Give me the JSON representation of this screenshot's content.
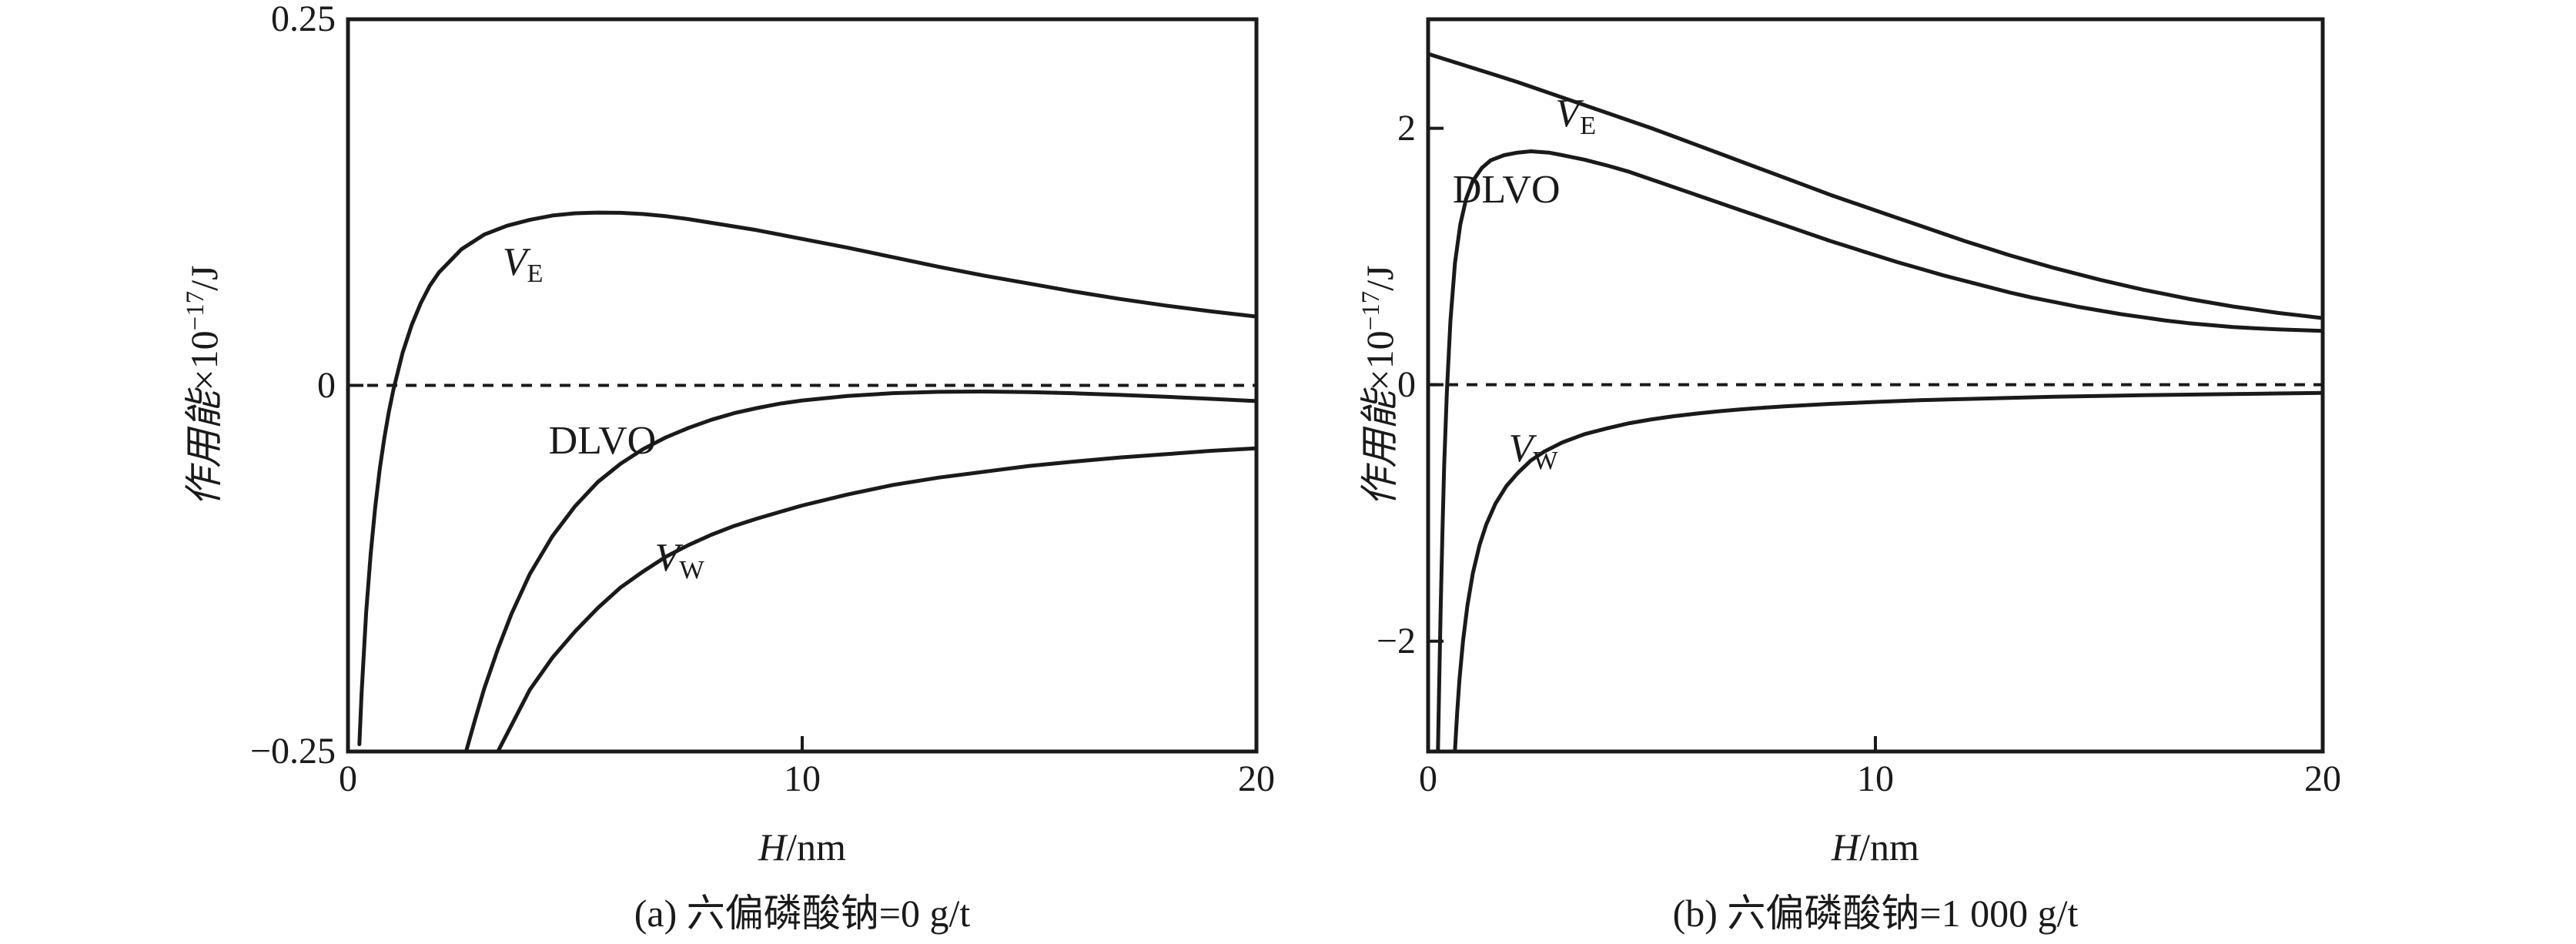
{
  "colors": {
    "ink": "#1a1a1a",
    "background": "#ffffff"
  },
  "chart_data": [
    {
      "type": "line",
      "panel": "a",
      "caption": "(a) 六偏磷酸钠=0 g/t",
      "xlabel_var": "H",
      "xlabel_unit": "/nm",
      "ylabel_cjk": "作用能",
      "ylabel_base": "×10",
      "ylabel_sup": "−17",
      "ylabel_unit": "/J",
      "xlim": [
        0,
        20
      ],
      "ylim": [
        -0.25,
        0.25
      ],
      "grid": false,
      "zero_line_dashed": true,
      "x_ticks": [
        {
          "v": 0,
          "label": "0"
        },
        {
          "v": 10,
          "label": "10"
        },
        {
          "v": 20,
          "label": "20"
        }
      ],
      "y_ticks": [
        {
          "v": 0.25,
          "label": "0.25"
        },
        {
          "v": 0,
          "label": "0"
        },
        {
          "v": -0.25,
          "label": "−0.25"
        }
      ],
      "series": [
        {
          "name": "VE",
          "label": {
            "main": "V",
            "sub": "E",
            "italic": true
          },
          "label_at": [
            3.85,
            0.084
          ],
          "points": [
            [
              0.25,
              -0.245
            ],
            [
              0.3,
              -0.21
            ],
            [
              0.4,
              -0.155
            ],
            [
              0.5,
              -0.115
            ],
            [
              0.6,
              -0.083
            ],
            [
              0.7,
              -0.057
            ],
            [
              0.8,
              -0.036
            ],
            [
              0.9,
              -0.018
            ],
            [
              1.0,
              -0.003
            ],
            [
              1.2,
              0.022
            ],
            [
              1.4,
              0.041
            ],
            [
              1.6,
              0.056
            ],
            [
              1.8,
              0.068
            ],
            [
              2.0,
              0.077
            ],
            [
              2.5,
              0.093
            ],
            [
              3.0,
              0.103
            ],
            [
              3.5,
              0.109
            ],
            [
              4.0,
              0.113
            ],
            [
              4.5,
              0.116
            ],
            [
              5.0,
              0.1175
            ],
            [
              5.5,
              0.118
            ],
            [
              6.0,
              0.1178
            ],
            [
              6.5,
              0.117
            ],
            [
              7.0,
              0.1155
            ],
            [
              7.5,
              0.1135
            ],
            [
              8.0,
              0.111
            ],
            [
              9.0,
              0.106
            ],
            [
              10,
              0.1
            ],
            [
              11,
              0.094
            ],
            [
              12,
              0.0875
            ],
            [
              13,
              0.081
            ],
            [
              14,
              0.075
            ],
            [
              15,
              0.0695
            ],
            [
              16,
              0.064
            ],
            [
              17,
              0.059
            ],
            [
              18,
              0.0545
            ],
            [
              19,
              0.0505
            ],
            [
              20,
              0.047
            ]
          ]
        },
        {
          "name": "DLVO",
          "label": {
            "main": "DLVO",
            "sub": "",
            "italic": false
          },
          "label_at": [
            5.6,
            -0.038
          ],
          "points": [
            [
              2.6,
              -0.25
            ],
            [
              2.8,
              -0.228
            ],
            [
              3.0,
              -0.207
            ],
            [
              3.3,
              -0.18
            ],
            [
              3.6,
              -0.156
            ],
            [
              4.0,
              -0.129
            ],
            [
              4.5,
              -0.103
            ],
            [
              5.0,
              -0.0825
            ],
            [
              5.5,
              -0.066
            ],
            [
              6.0,
              -0.0535
            ],
            [
              6.5,
              -0.0435
            ],
            [
              7.0,
              -0.0355
            ],
            [
              7.5,
              -0.029
            ],
            [
              8.0,
              -0.0235
            ],
            [
              8.5,
              -0.019
            ],
            [
              9.0,
              -0.0155
            ],
            [
              9.5,
              -0.0125
            ],
            [
              10,
              -0.0103
            ],
            [
              11,
              -0.0072
            ],
            [
              12,
              -0.0053
            ],
            [
              13,
              -0.0044
            ],
            [
              14,
              -0.0042
            ],
            [
              15,
              -0.0046
            ],
            [
              16,
              -0.0054
            ],
            [
              17,
              -0.0065
            ],
            [
              18,
              -0.0078
            ],
            [
              19,
              -0.0092
            ],
            [
              20,
              -0.0107
            ]
          ]
        },
        {
          "name": "VW",
          "label": {
            "main": "V",
            "sub": "W",
            "italic": true
          },
          "label_at": [
            7.3,
            -0.118
          ],
          "points": [
            [
              3.3,
              -0.25
            ],
            [
              3.6,
              -0.232
            ],
            [
              4.0,
              -0.208
            ],
            [
              4.5,
              -0.186
            ],
            [
              5.0,
              -0.168
            ],
            [
              5.5,
              -0.152
            ],
            [
              6.0,
              -0.138
            ],
            [
              6.5,
              -0.127
            ],
            [
              7.0,
              -0.117
            ],
            [
              7.5,
              -0.109
            ],
            [
              8.0,
              -0.102
            ],
            [
              8.5,
              -0.096
            ],
            [
              9.0,
              -0.091
            ],
            [
              9.5,
              -0.0865
            ],
            [
              10,
              -0.082
            ],
            [
              11,
              -0.0745
            ],
            [
              12,
              -0.068
            ],
            [
              13,
              -0.063
            ],
            [
              14,
              -0.059
            ],
            [
              15,
              -0.055
            ],
            [
              16,
              -0.052
            ],
            [
              17,
              -0.0492
            ],
            [
              18,
              -0.047
            ],
            [
              19,
              -0.0447
            ],
            [
              20,
              -0.043
            ]
          ]
        }
      ]
    },
    {
      "type": "line",
      "panel": "b",
      "caption": "(b) 六偏磷酸钠=1 000 g/t",
      "xlabel_var": "H",
      "xlabel_unit": "/nm",
      "ylabel_cjk": "作用能",
      "ylabel_base": "×10",
      "ylabel_sup": "−17",
      "ylabel_unit": "/J",
      "xlim": [
        0,
        20
      ],
      "ylim": [
        -2.86,
        2.85
      ],
      "grid": false,
      "zero_line_dashed": true,
      "x_ticks": [
        {
          "v": 0,
          "label": "0"
        },
        {
          "v": 10,
          "label": "10"
        },
        {
          "v": 20,
          "label": "20"
        }
      ],
      "y_ticks": [
        {
          "v": 2,
          "label": "2"
        },
        {
          "v": 0,
          "label": "0"
        },
        {
          "v": -2,
          "label": "−2"
        }
      ],
      "series": [
        {
          "name": "VE",
          "label": {
            "main": "V",
            "sub": "E",
            "italic": true
          },
          "label_at": [
            3.3,
            2.11
          ],
          "points": [
            [
              0,
              2.58
            ],
            [
              0.5,
              2.525
            ],
            [
              1,
              2.47
            ],
            [
              1.5,
              2.415
            ],
            [
              2,
              2.36
            ],
            [
              2.5,
              2.3
            ],
            [
              3,
              2.24
            ],
            [
              3.5,
              2.18
            ],
            [
              4,
              2.12
            ],
            [
              4.5,
              2.06
            ],
            [
              5,
              2.0
            ],
            [
              5.5,
              1.935
            ],
            [
              6,
              1.87
            ],
            [
              6.5,
              1.805
            ],
            [
              7,
              1.74
            ],
            [
              7.5,
              1.675
            ],
            [
              8,
              1.61
            ],
            [
              8.5,
              1.545
            ],
            [
              9,
              1.48
            ],
            [
              9.5,
              1.42
            ],
            [
              10,
              1.36
            ],
            [
              10.5,
              1.3
            ],
            [
              11,
              1.24
            ],
            [
              11.5,
              1.18
            ],
            [
              12,
              1.12
            ],
            [
              12.5,
              1.065
            ],
            [
              13,
              1.01
            ],
            [
              13.5,
              0.96
            ],
            [
              14,
              0.91
            ],
            [
              14.5,
              0.865
            ],
            [
              15,
              0.82
            ],
            [
              15.5,
              0.78
            ],
            [
              16,
              0.74
            ],
            [
              16.5,
              0.705
            ],
            [
              17,
              0.67
            ],
            [
              17.5,
              0.64
            ],
            [
              18,
              0.61
            ],
            [
              18.5,
              0.585
            ],
            [
              19,
              0.56
            ],
            [
              19.5,
              0.54
            ],
            [
              20,
              0.52
            ]
          ]
        },
        {
          "name": "DLVO",
          "label": {
            "main": "DLVO",
            "sub": "",
            "italic": false
          },
          "label_at": [
            1.75,
            1.52
          ],
          "points": [
            [
              0.22,
              -2.85
            ],
            [
              0.25,
              -2.3
            ],
            [
              0.28,
              -1.75
            ],
            [
              0.32,
              -1.15
            ],
            [
              0.36,
              -0.62
            ],
            [
              0.42,
              -0.05
            ],
            [
              0.5,
              0.5
            ],
            [
              0.6,
              0.95
            ],
            [
              0.72,
              1.25
            ],
            [
              0.85,
              1.45
            ],
            [
              1.0,
              1.59
            ],
            [
              1.2,
              1.69
            ],
            [
              1.4,
              1.75
            ],
            [
              1.7,
              1.79
            ],
            [
              2.0,
              1.81
            ],
            [
              2.3,
              1.82
            ],
            [
              2.7,
              1.81
            ],
            [
              3.0,
              1.79
            ],
            [
              3.5,
              1.755
            ],
            [
              4.0,
              1.71
            ],
            [
              4.5,
              1.66
            ],
            [
              5.0,
              1.6
            ],
            [
              5.5,
              1.54
            ],
            [
              6,
              1.48
            ],
            [
              6.5,
              1.42
            ],
            [
              7,
              1.36
            ],
            [
              7.5,
              1.3
            ],
            [
              8,
              1.24
            ],
            [
              8.5,
              1.18
            ],
            [
              9,
              1.12
            ],
            [
              9.5,
              1.065
            ],
            [
              10,
              1.01
            ],
            [
              10.5,
              0.955
            ],
            [
              11,
              0.905
            ],
            [
              11.5,
              0.855
            ],
            [
              12,
              0.81
            ],
            [
              12.5,
              0.765
            ],
            [
              13,
              0.72
            ],
            [
              13.5,
              0.68
            ],
            [
              14,
              0.645
            ],
            [
              14.5,
              0.61
            ],
            [
              15,
              0.58
            ],
            [
              15.5,
              0.55
            ],
            [
              16,
              0.525
            ],
            [
              16.5,
              0.5
            ],
            [
              17,
              0.48
            ],
            [
              17.5,
              0.465
            ],
            [
              18,
              0.45
            ],
            [
              18.5,
              0.44
            ],
            [
              19,
              0.432
            ],
            [
              19.5,
              0.426
            ],
            [
              20,
              0.42
            ]
          ]
        },
        {
          "name": "VW",
          "label": {
            "main": "V",
            "sub": "W",
            "italic": true
          },
          "label_at": [
            2.35,
            -0.5
          ],
          "points": [
            [
              0.6,
              -2.85
            ],
            [
              0.65,
              -2.55
            ],
            [
              0.7,
              -2.3
            ],
            [
              0.78,
              -2.0
            ],
            [
              0.88,
              -1.72
            ],
            [
              1.0,
              -1.47
            ],
            [
              1.15,
              -1.25
            ],
            [
              1.3,
              -1.09
            ],
            [
              1.5,
              -0.93
            ],
            [
              1.75,
              -0.79
            ],
            [
              2.0,
              -0.69
            ],
            [
              2.3,
              -0.59
            ],
            [
              2.6,
              -0.52
            ],
            [
              3.0,
              -0.45
            ],
            [
              3.5,
              -0.385
            ],
            [
              4.0,
              -0.34
            ],
            [
              4.5,
              -0.3
            ],
            [
              5.0,
              -0.27
            ],
            [
              5.5,
              -0.245
            ],
            [
              6,
              -0.225
            ],
            [
              6.5,
              -0.207
            ],
            [
              7,
              -0.192
            ],
            [
              7.5,
              -0.179
            ],
            [
              8,
              -0.168
            ],
            [
              9,
              -0.149
            ],
            [
              10,
              -0.134
            ],
            [
              11,
              -0.121
            ],
            [
              12,
              -0.111
            ],
            [
              13,
              -0.102
            ],
            [
              14,
              -0.094
            ],
            [
              15,
              -0.088
            ],
            [
              16,
              -0.082
            ],
            [
              17,
              -0.077
            ],
            [
              18,
              -0.072
            ],
            [
              19,
              -0.068
            ],
            [
              20,
              -0.064
            ]
          ]
        }
      ]
    }
  ]
}
